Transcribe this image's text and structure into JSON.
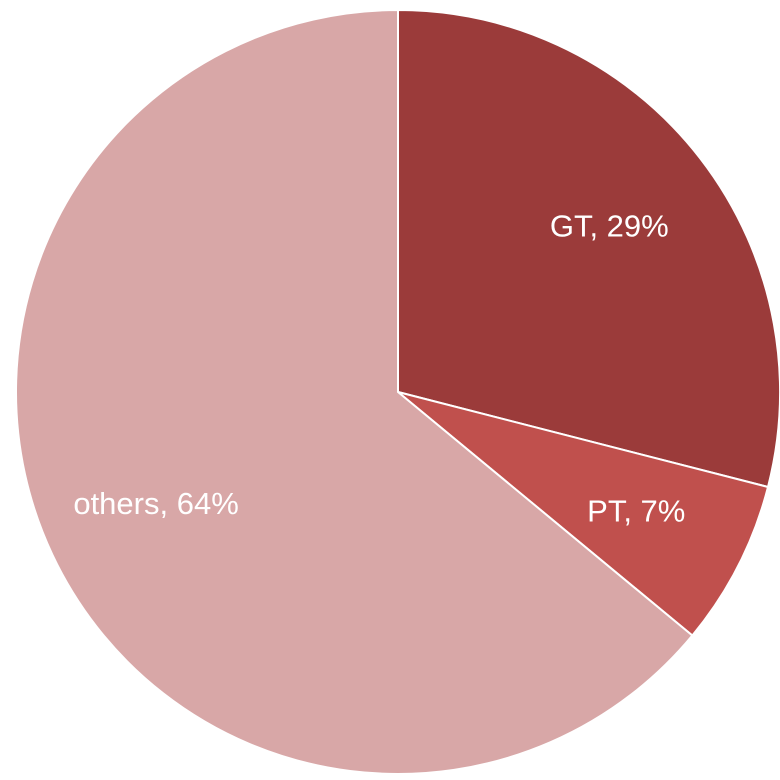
{
  "chart_data": {
    "type": "pie",
    "categories": [
      "GT",
      "PT",
      "others"
    ],
    "values": [
      29,
      7,
      64
    ],
    "value_labels": [
      "GT, 29%",
      "PT, 7%",
      "others, 64%"
    ],
    "colors": [
      "#9b3b3a",
      "#c0504d",
      "#d8a7a7"
    ]
  }
}
